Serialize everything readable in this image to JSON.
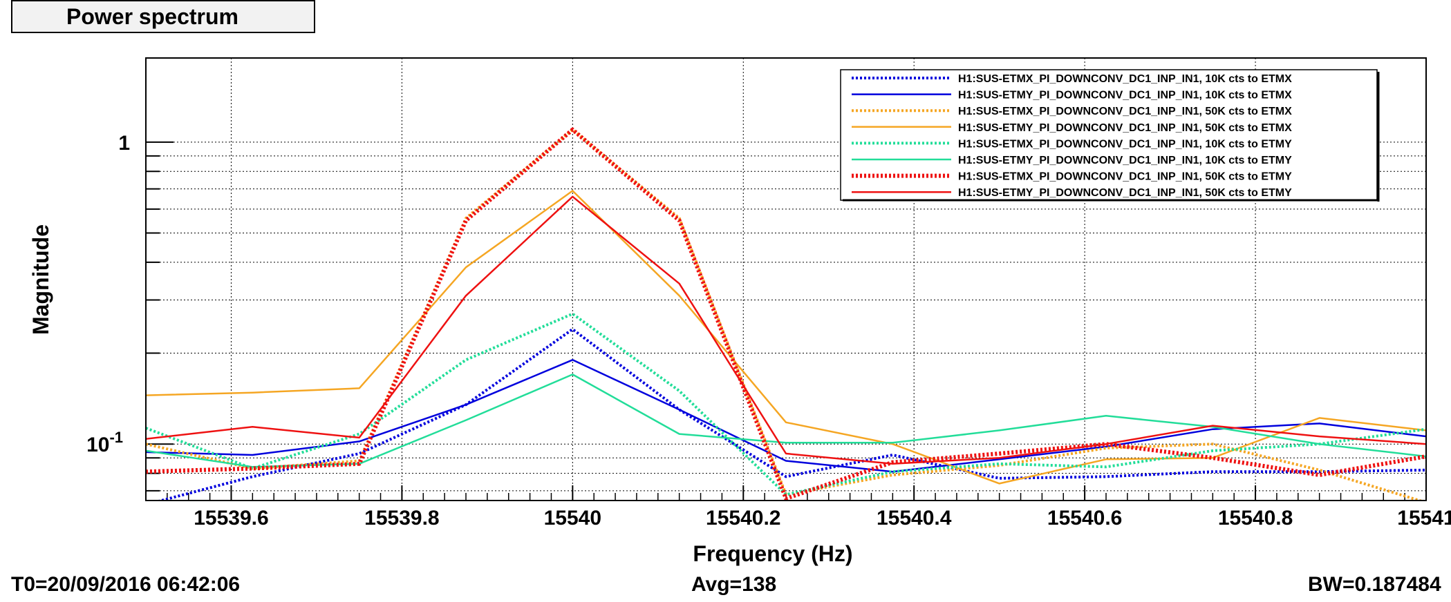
{
  "window": {
    "title": "Power spectrum"
  },
  "footer": {
    "t0": "T0=20/09/2016 06:42:06",
    "avg": "Avg=138",
    "bw": "BW=0.187484"
  },
  "chart_data": {
    "type": "line",
    "xlabel": "Frequency (Hz)",
    "ylabel": "Magnitude",
    "xlim": [
      15539.5,
      15541.0
    ],
    "ylim": [
      0.065,
      1.9
    ],
    "yscale": "log",
    "grid": true,
    "legend_position": "top-right",
    "x_ticks": [
      {
        "value": 15539.6,
        "label": "15539.6"
      },
      {
        "value": 15539.8,
        "label": "15539.8"
      },
      {
        "value": 15540.0,
        "label": "15540"
      },
      {
        "value": 15540.2,
        "label": "15540.2"
      },
      {
        "value": 15540.4,
        "label": "15540.4"
      },
      {
        "value": 15540.6,
        "label": "15540.6"
      },
      {
        "value": 15540.8,
        "label": "15540.8"
      },
      {
        "value": 15541.0,
        "label": "15541"
      }
    ],
    "y_ticks": [
      {
        "value": 1,
        "label": "1"
      },
      {
        "value": 0.1,
        "label": "10",
        "sup": "-1"
      }
    ],
    "x": [
      15539.5,
      15539.625,
      15539.75,
      15539.875,
      15540.0,
      15540.125,
      15540.25,
      15540.375,
      15540.5,
      15540.625,
      15540.75,
      15540.875,
      15541.0
    ],
    "series": [
      {
        "name": "H1:SUS-ETMX_PI_DOWNCONV_DC1_INP_IN1, 10K cts to ETMX",
        "color": "#0000dd",
        "style": "dotted",
        "values": [
          0.063,
          0.078,
          0.093,
          0.135,
          0.24,
          0.13,
          0.078,
          0.092,
          0.077,
          0.078,
          0.081,
          0.081,
          0.082
        ]
      },
      {
        "name": "H1:SUS-ETMY_PI_DOWNCONV_DC1_INP_IN1, 10K cts to ETMX",
        "color": "#0000dd",
        "style": "solid",
        "values": [
          0.094,
          0.092,
          0.102,
          0.135,
          0.19,
          0.13,
          0.088,
          0.081,
          0.089,
          0.098,
          0.112,
          0.117,
          0.106
        ]
      },
      {
        "name": "H1:SUS-ETMX_PI_DOWNCONV_DC1_INP_IN1, 50K cts to ETMX",
        "color": "#f5a623",
        "style": "dotted",
        "values": [
          0.1,
          0.083,
          0.088,
          0.56,
          1.1,
          0.56,
          0.068,
          0.079,
          0.085,
          0.097,
          0.1,
          0.082,
          0.064
        ]
      },
      {
        "name": "H1:SUS-ETMY_PI_DOWNCONV_DC1_INP_IN1, 50K cts to ETMX",
        "color": "#f5a623",
        "style": "solid",
        "values": [
          0.145,
          0.148,
          0.153,
          0.385,
          0.69,
          0.31,
          0.118,
          0.1,
          0.074,
          0.089,
          0.09,
          0.122,
          0.111
        ]
      },
      {
        "name": "H1:SUS-ETMX_PI_DOWNCONV_DC1_INP_IN1, 10K cts to ETMY",
        "color": "#22dd99",
        "style": "dotted",
        "values": [
          0.113,
          0.083,
          0.108,
          0.19,
          0.27,
          0.15,
          0.068,
          0.081,
          0.086,
          0.084,
          0.095,
          0.1,
          0.112
        ]
      },
      {
        "name": "H1:SUS-ETMY_PI_DOWNCONV_DC1_INP_IN1, 10K cts to ETMY",
        "color": "#22dd99",
        "style": "solid",
        "values": [
          0.095,
          0.084,
          0.086,
          0.12,
          0.17,
          0.108,
          0.101,
          0.101,
          0.111,
          0.124,
          0.114,
          0.1,
          0.091
        ]
      },
      {
        "name": "H1:SUS-ETMX_PI_DOWNCONV_DC1_INP_IN1, 50K cts to ETMY",
        "color": "#ee1111",
        "style": "dotted",
        "values": [
          0.081,
          0.083,
          0.086,
          0.55,
          1.1,
          0.55,
          0.066,
          0.087,
          0.093,
          0.1,
          0.09,
          0.079,
          0.091
        ]
      },
      {
        "name": "H1:SUS-ETMY_PI_DOWNCONV_DC1_INP_IN1, 50K cts to ETMY",
        "color": "#ee1111",
        "style": "solid",
        "values": [
          0.104,
          0.114,
          0.105,
          0.31,
          0.66,
          0.34,
          0.093,
          0.086,
          0.09,
          0.1,
          0.115,
          0.106,
          0.1
        ]
      }
    ]
  }
}
